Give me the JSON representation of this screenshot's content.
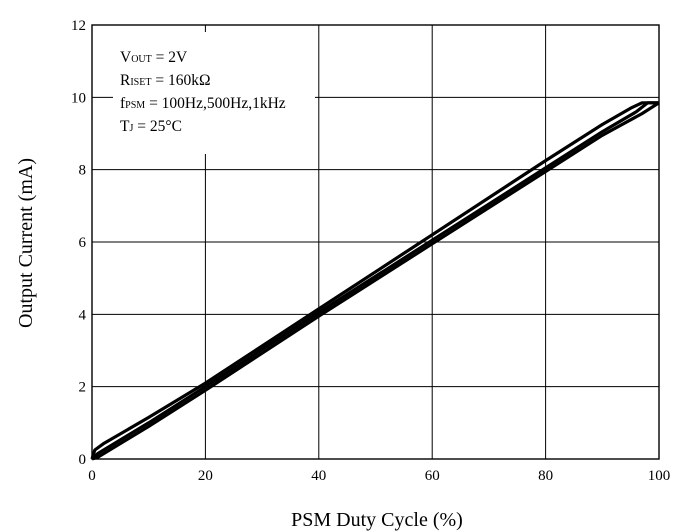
{
  "chart_data": {
    "type": "line",
    "title": "",
    "xlabel": "PSM Duty Cycle (%)",
    "ylabel": "Output Current (mA)",
    "xlim": [
      0,
      100
    ],
    "ylim": [
      0,
      12
    ],
    "xticks": [
      0,
      20,
      40,
      60,
      80,
      100
    ],
    "yticks": [
      0,
      2,
      4,
      6,
      8,
      10,
      12
    ],
    "grid": true,
    "legend": "none",
    "line_color": "#000000",
    "annotations": [
      {
        "main": "V",
        "sub": "OUT",
        "rest": " = 2V"
      },
      {
        "main": "R",
        "sub": "ISET",
        "rest": " = 160kΩ"
      },
      {
        "main": "f",
        "sub": "PSM",
        "rest": " = 100Hz,500Hz,1kHz"
      },
      {
        "main": "T",
        "sub": "J",
        "rest": " = 25°C"
      }
    ],
    "series": [
      {
        "x": [
          0,
          0.5,
          2,
          10,
          20,
          40,
          60,
          80,
          90,
          95,
          97,
          100
        ],
        "y": [
          0,
          0.25,
          0.42,
          1.15,
          2.1,
          4.15,
          6.2,
          8.25,
          9.25,
          9.7,
          9.85,
          9.85
        ]
      },
      {
        "x": [
          0,
          1,
          10,
          20,
          40,
          60,
          80,
          90,
          96,
          98,
          100
        ],
        "y": [
          0,
          0.15,
          1.0,
          2.0,
          4.05,
          6.05,
          8.05,
          9.05,
          9.6,
          9.85,
          9.85
        ]
      },
      {
        "x": [
          0,
          1,
          10,
          20,
          40,
          60,
          80,
          90,
          97,
          100
        ],
        "y": [
          0,
          0.05,
          0.9,
          1.9,
          3.95,
          5.95,
          7.95,
          8.95,
          9.55,
          9.85
        ]
      }
    ]
  }
}
